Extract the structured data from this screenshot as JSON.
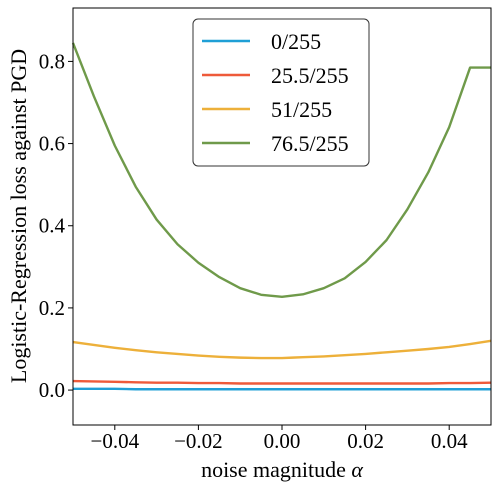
{
  "chart_data": {
    "type": "line",
    "xlabel": "noise magnitude",
    "xlabel_symbol": "α",
    "ylabel": "Logistic-Regression loss against PGD",
    "xlim": [
      -0.05,
      0.05
    ],
    "ylim": [
      -0.085,
      0.93
    ],
    "xticks": [
      -0.04,
      -0.02,
      0.0,
      0.02,
      0.04
    ],
    "xtick_labels": [
      "−0.04",
      "−0.02",
      "0.00",
      "0.02",
      "0.04"
    ],
    "yticks": [
      0.0,
      0.2,
      0.4,
      0.6,
      0.8
    ],
    "ytick_labels": [
      "0.0",
      "0.2",
      "0.4",
      "0.6",
      "0.8"
    ],
    "legend_position": "top-center",
    "grid": false,
    "x": [
      -0.05,
      -0.045,
      -0.04,
      -0.035,
      -0.03,
      -0.025,
      -0.02,
      -0.015,
      -0.01,
      -0.005,
      0.0,
      0.0025,
      0.005,
      0.01,
      0.015,
      0.02,
      0.025,
      0.03,
      0.035,
      0.04,
      0.045,
      0.05
    ],
    "series": [
      {
        "name": "0/255",
        "color": "#1f9fd6",
        "values": [
          0.003,
          0.003,
          0.003,
          0.002,
          0.002,
          0.002,
          0.002,
          0.002,
          0.002,
          0.002,
          0.002,
          0.002,
          0.002,
          0.002,
          0.002,
          0.002,
          0.002,
          0.002,
          0.002,
          0.002,
          0.002,
          0.002
        ]
      },
      {
        "name": "25.5/255",
        "color": "#ee5a3a",
        "values": [
          0.022,
          0.021,
          0.02,
          0.019,
          0.018,
          0.018,
          0.017,
          0.017,
          0.016,
          0.016,
          0.016,
          0.016,
          0.016,
          0.016,
          0.016,
          0.016,
          0.016,
          0.016,
          0.016,
          0.017,
          0.017,
          0.018
        ]
      },
      {
        "name": "51/255",
        "color": "#edb03a",
        "values": [
          0.117,
          0.11,
          0.103,
          0.097,
          0.092,
          0.088,
          0.084,
          0.081,
          0.079,
          0.078,
          0.078,
          0.079,
          0.08,
          0.082,
          0.085,
          0.088,
          0.092,
          0.096,
          0.1,
          0.105,
          0.112,
          0.12
        ]
      },
      {
        "name": "76.5/255",
        "color": "#6f9a4a",
        "values": [
          0.845,
          0.715,
          0.595,
          0.495,
          0.415,
          0.355,
          0.31,
          0.275,
          0.248,
          0.232,
          0.227,
          0.23,
          0.233,
          0.248,
          0.272,
          0.312,
          0.365,
          0.44,
          0.53,
          0.64,
          0.785,
          0.785
        ]
      }
    ]
  }
}
